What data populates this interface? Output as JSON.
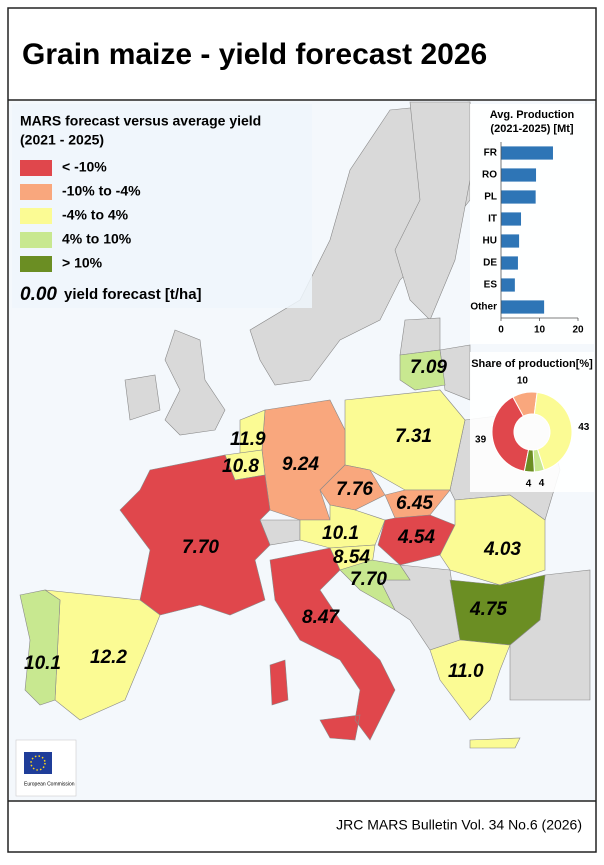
{
  "header": {
    "title": "Grain maize - yield forecast 2026"
  },
  "legend": {
    "title": "MARS forecast versus average yield",
    "subtitle": "(2021 - 2025)",
    "items": [
      {
        "label": "< -10%",
        "color": "#e0474c"
      },
      {
        "label": "-10% to -4%",
        "color": "#f9a77d"
      },
      {
        "label": "-4% to 4%",
        "color": "#fbfb94"
      },
      {
        "label": "4% to 10%",
        "color": "#c8e890"
      },
      {
        "label": "> 10%",
        "color": "#6b8e23"
      }
    ],
    "sample_value": "0.00",
    "sample_text": "yield forecast [t/ha]"
  },
  "regions": [
    {
      "label": "7.09",
      "class": 3
    },
    {
      "label": "7.31",
      "class": 2
    },
    {
      "label": "9.24",
      "class": 1
    },
    {
      "label": "11.9",
      "class": 2
    },
    {
      "label": "10.8",
      "class": 2
    },
    {
      "label": "7.70",
      "class": 0
    },
    {
      "label": "7.76",
      "class": 1
    },
    {
      "label": "6.45",
      "class": 1
    },
    {
      "label": "10.1",
      "class": 2
    },
    {
      "label": "4.54",
      "class": 0
    },
    {
      "label": "4.03",
      "class": 2
    },
    {
      "label": "8.54",
      "class": 2
    },
    {
      "label": "7.70",
      "class": 3
    },
    {
      "label": "8.47",
      "class": 0
    },
    {
      "label": "4.75",
      "class": 4
    },
    {
      "label": "11.0",
      "class": 2
    },
    {
      "label": "12.2",
      "class": 2
    },
    {
      "label": "10.1",
      "class": 3
    }
  ],
  "chart_data": [
    {
      "type": "bar",
      "title": "Avg. Production",
      "subtitle": "(2021-2025) [Mt]",
      "categories": [
        "FR",
        "RO",
        "PL",
        "IT",
        "HU",
        "DE",
        "ES",
        "Other"
      ],
      "values": [
        13.5,
        9.1,
        9.0,
        5.2,
        4.7,
        4.4,
        3.6,
        11.2
      ],
      "color": "#2e75b6",
      "xlim": [
        0,
        20
      ],
      "xticks": [
        0,
        10,
        20
      ]
    },
    {
      "type": "pie",
      "title": "Share of production[%]",
      "values": [
        39,
        10,
        43,
        4,
        4
      ]
    }
  ],
  "logo_text": "European Commission",
  "footer": "JRC MARS Bulletin Vol. 34 No.6 (2026)"
}
